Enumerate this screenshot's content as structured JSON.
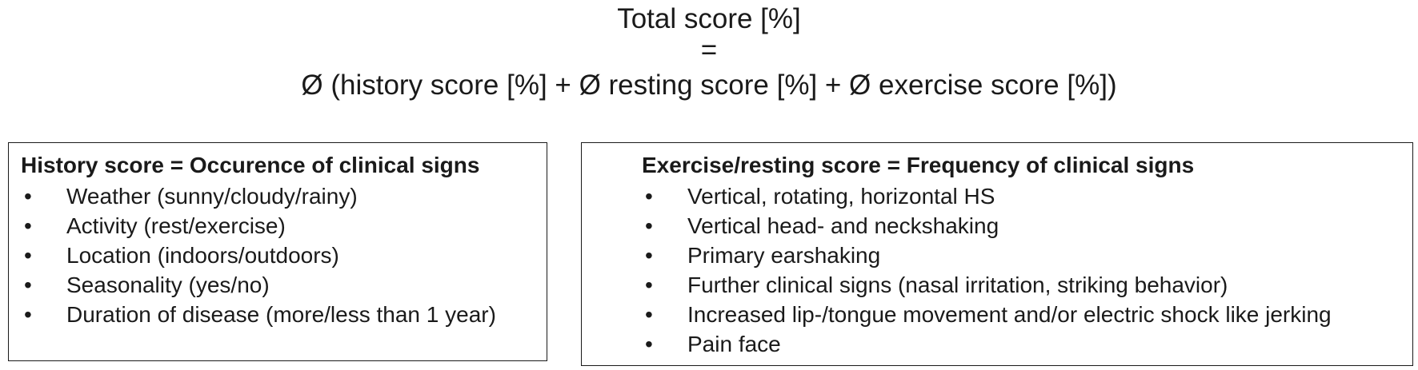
{
  "formula": {
    "line1": "Total score [%]",
    "line2": "=",
    "line3": "Ø (history score [%] + Ø resting score [%] + Ø exercise score [%])"
  },
  "history_box": {
    "title": "History score = Occurence of clinical signs",
    "bullet": "•",
    "items": [
      "Weather (sunny/cloudy/rainy)",
      "Activity (rest/exercise)",
      "Location (indoors/outdoors)",
      "Seasonality (yes/no)",
      "Duration of disease (more/less than 1 year)"
    ]
  },
  "exercise_box": {
    "title": "Exercise/resting score = Frequency of clinical signs",
    "bullet": "•",
    "items": [
      "Vertical, rotating, horizontal HS",
      "Vertical head- and neckshaking",
      "Primary earshaking",
      "Further clinical signs (nasal irritation, striking behavior)",
      "Increased lip-/tongue movement and/or electric shock like jerking",
      "Pain face"
    ]
  }
}
